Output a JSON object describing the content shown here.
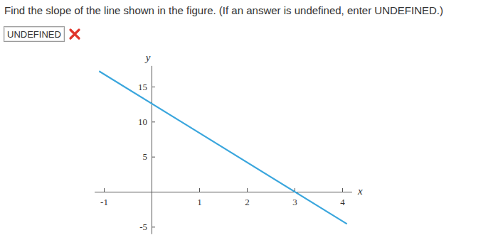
{
  "question": "Find the slope of the line shown in the figure. (If an answer is undefined, enter UNDEFINED.)",
  "answer": "UNDEFINED",
  "chart_data": {
    "type": "line",
    "x_label": "x",
    "y_label": "y",
    "x": [
      -1.1,
      4.1
    ],
    "values": [
      17.2,
      -4.6
    ],
    "color": "#3aa6dd",
    "xlim": [
      -1.2,
      4.2
    ],
    "ylim": [
      -6,
      18
    ],
    "xticks": [
      -1,
      1,
      2,
      3,
      4
    ],
    "yticks": [
      -5,
      5,
      10,
      15
    ],
    "grid": false
  }
}
